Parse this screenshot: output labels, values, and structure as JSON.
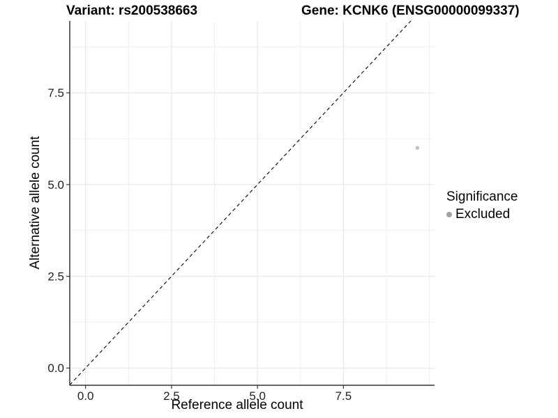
{
  "chart_data": {
    "type": "scatter",
    "title_left": "Variant: rs200538663",
    "title_right": "Gene: KCNK6 (ENSG00000099337)",
    "xlabel": "Reference allele count",
    "ylabel": "Alternative allele count",
    "xlim": [
      -0.46,
      10.15
    ],
    "ylim": [
      -0.47,
      9.46
    ],
    "x_breaks": [
      0,
      2.5,
      5,
      7.5
    ],
    "x_break_labels": [
      "0.0",
      "2.5",
      "5.0",
      "7.5"
    ],
    "x_minor_breaks": [
      1.25,
      3.75,
      6.25,
      8.75,
      10
    ],
    "y_breaks": [
      0,
      2.5,
      5,
      7.5
    ],
    "y_break_labels": [
      "0.0",
      "2.5",
      "5.0",
      "7.5"
    ],
    "y_minor_breaks": [
      1.25,
      3.75,
      6.25,
      8.75
    ],
    "grid": true,
    "identity_line": {
      "equation": "y = x",
      "style": "dashed",
      "color": "#111111"
    },
    "points": [
      {
        "x": 9.65,
        "y": 6,
        "series": "Excluded"
      }
    ],
    "legend": {
      "title": "Significance",
      "position": "right",
      "entries": [
        {
          "label": "Excluded",
          "color": "#a1a1a1"
        }
      ]
    },
    "colors": {
      "point": "#bdbdbd",
      "grid_major": "#e3e3e3",
      "grid_minor": "#f0f0f0",
      "axis": "#333333",
      "tick_text": "#1f1f1f",
      "background": "#ffffff"
    }
  }
}
